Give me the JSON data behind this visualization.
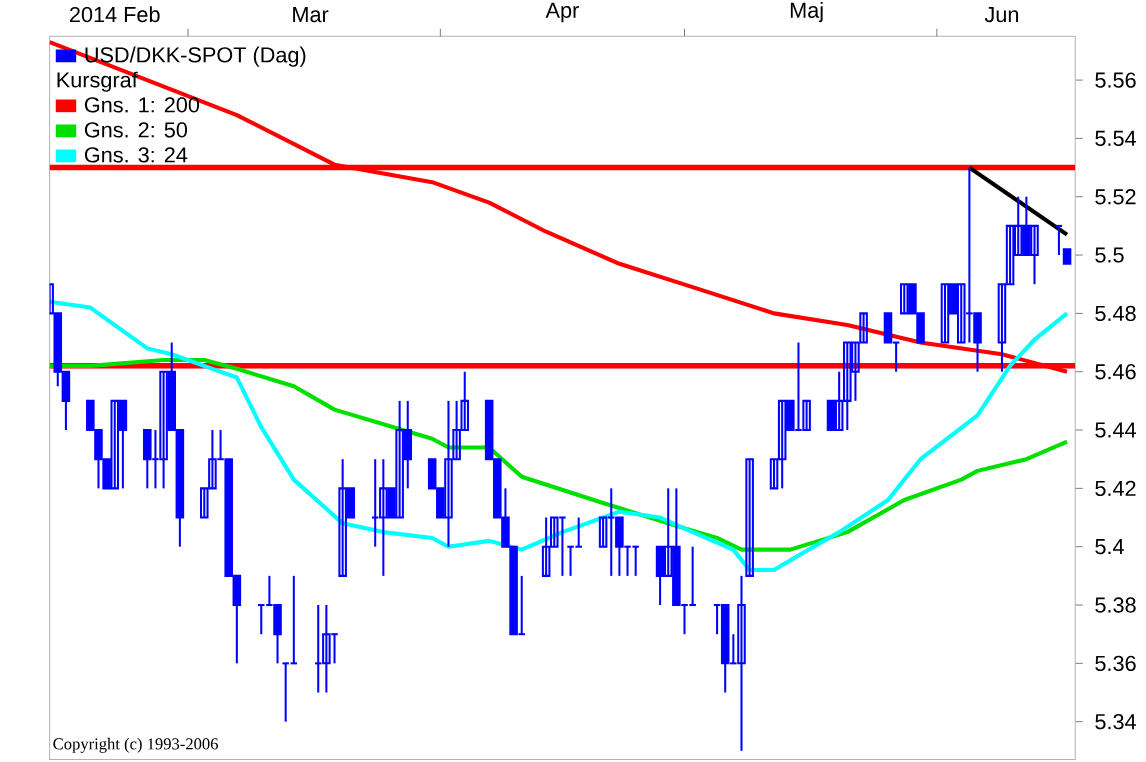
{
  "chart_data": {
    "type": "candlestick",
    "legend": "top left",
    "legend_title": "Kursgraf",
    "xlim": [
      "2014-02-12",
      "2014-06-18"
    ],
    "ylim": [
      5.327,
      5.575
    ],
    "xticks": [
      {
        "value": "2014-02-20",
        "label": "2014 Feb"
      },
      {
        "value": "2014-03-01",
        "label": null
      },
      {
        "value": "2014-03-16",
        "label": "Mar"
      },
      {
        "value": "2014-04-01",
        "label": null
      },
      {
        "value": "2014-04-16",
        "label": "Apr"
      },
      {
        "value": "2014-05-01",
        "label": null
      },
      {
        "value": "2014-05-16",
        "label": "Maj"
      },
      {
        "value": "2014-06-01",
        "label": null
      },
      {
        "value": "2014-06-09",
        "label": "Jun"
      }
    ],
    "yticks": [
      5.34,
      5.36,
      5.38,
      5.4,
      5.42,
      5.44,
      5.46,
      5.48,
      5.5,
      5.52,
      5.54,
      5.56
    ],
    "ref_lines": [
      {
        "axis": "y",
        "value": 5.53,
        "color": "#ff0000"
      },
      {
        "axis": "y",
        "value": 5.462,
        "color": "#ff0000"
      }
    ],
    "annotations": [
      "Copyright (c) 1993-2006"
    ],
    "series": [
      {
        "name": "USD/DKK-SPOT (Dag)",
        "color": "#0000ff",
        "x": [
          "2014-02-12",
          "2014-02-13",
          "2014-02-14",
          "2014-02-17",
          "2014-02-18",
          "2014-02-19",
          "2014-02-20",
          "2014-02-21",
          "2014-02-24",
          "2014-02-25",
          "2014-02-26",
          "2014-02-27",
          "2014-02-28",
          "2014-03-03",
          "2014-03-04",
          "2014-03-05",
          "2014-03-06",
          "2014-03-07",
          "2014-03-10",
          "2014-03-11",
          "2014-03-12",
          "2014-03-13",
          "2014-03-14",
          "2014-03-17",
          "2014-03-18",
          "2014-03-19",
          "2014-03-20",
          "2014-03-21",
          "2014-03-24",
          "2014-03-25",
          "2014-03-26",
          "2014-03-27",
          "2014-03-28",
          "2014-03-31",
          "2014-04-01",
          "2014-04-02",
          "2014-04-03",
          "2014-04-04",
          "2014-04-07",
          "2014-04-08",
          "2014-04-09",
          "2014-04-10",
          "2014-04-11",
          "2014-04-14",
          "2014-04-15",
          "2014-04-16",
          "2014-04-17",
          "2014-04-18",
          "2014-04-21",
          "2014-04-22",
          "2014-04-23",
          "2014-04-24",
          "2014-04-25",
          "2014-04-28",
          "2014-04-29",
          "2014-04-30",
          "2014-05-01",
          "2014-05-02",
          "2014-05-05",
          "2014-05-06",
          "2014-05-07",
          "2014-05-08",
          "2014-05-09",
          "2014-05-12",
          "2014-05-13",
          "2014-05-14",
          "2014-05-15",
          "2014-05-16",
          "2014-05-19",
          "2014-05-20",
          "2014-05-21",
          "2014-05-22",
          "2014-05-23",
          "2014-05-26",
          "2014-05-27",
          "2014-05-28",
          "2014-05-29",
          "2014-05-30",
          "2014-06-02",
          "2014-06-03",
          "2014-06-04",
          "2014-06-05",
          "2014-06-06",
          "2014-06-09",
          "2014-06-10",
          "2014-06-11",
          "2014-06-12",
          "2014-06-13",
          "2014-06-16",
          "2014-06-17"
        ],
        "ohlc": [
          [
            5.48,
            5.49,
            5.48,
            5.49
          ],
          [
            5.48,
            5.48,
            5.455,
            5.46
          ],
          [
            5.46,
            5.46,
            5.44,
            5.45
          ],
          [
            5.45,
            5.45,
            5.44,
            5.44
          ],
          [
            5.44,
            5.44,
            5.42,
            5.43
          ],
          [
            5.43,
            5.43,
            5.42,
            5.42
          ],
          [
            5.42,
            5.45,
            5.42,
            5.45
          ],
          [
            5.45,
            5.45,
            5.42,
            5.44
          ],
          [
            5.44,
            5.44,
            5.42,
            5.43
          ],
          [
            5.43,
            5.44,
            5.42,
            5.43
          ],
          [
            5.43,
            5.46,
            5.42,
            5.46
          ],
          [
            5.46,
            5.47,
            5.44,
            5.44
          ],
          [
            5.44,
            5.44,
            5.4,
            5.41
          ],
          [
            5.41,
            5.42,
            5.41,
            5.42
          ],
          [
            5.42,
            5.44,
            5.42,
            5.43
          ],
          [
            5.43,
            5.44,
            5.43,
            5.43
          ],
          [
            5.43,
            5.43,
            5.39,
            5.39
          ],
          [
            5.39,
            5.39,
            5.36,
            5.38
          ],
          [
            5.38,
            5.38,
            5.37,
            5.38
          ],
          [
            5.38,
            5.39,
            5.38,
            5.38
          ],
          [
            5.38,
            5.38,
            5.36,
            5.37
          ],
          [
            5.36,
            5.36,
            5.34,
            5.36
          ],
          [
            5.36,
            5.39,
            5.36,
            5.36
          ],
          [
            5.36,
            5.38,
            5.35,
            5.36
          ],
          [
            5.36,
            5.38,
            5.35,
            5.37
          ],
          [
            5.37,
            5.37,
            5.36,
            5.37
          ],
          [
            5.39,
            5.43,
            5.39,
            5.42
          ],
          [
            5.42,
            5.42,
            5.41,
            5.41
          ],
          [
            5.41,
            5.43,
            5.4,
            5.41
          ],
          [
            5.41,
            5.43,
            5.39,
            5.42
          ],
          [
            5.42,
            5.42,
            5.41,
            5.41
          ],
          [
            5.41,
            5.45,
            5.41,
            5.44
          ],
          [
            5.44,
            5.45,
            5.42,
            5.43
          ],
          [
            5.43,
            5.43,
            5.42,
            5.42
          ],
          [
            5.42,
            5.42,
            5.41,
            5.41
          ],
          [
            5.41,
            5.45,
            5.4,
            5.43
          ],
          [
            5.43,
            5.45,
            5.43,
            5.44
          ],
          [
            5.44,
            5.46,
            5.44,
            5.45
          ],
          [
            5.45,
            5.45,
            5.43,
            5.43
          ],
          [
            5.43,
            5.43,
            5.41,
            5.41
          ],
          [
            5.41,
            5.42,
            5.4,
            5.4
          ],
          [
            5.4,
            5.4,
            5.37,
            5.37
          ],
          [
            5.37,
            5.39,
            5.37,
            5.37
          ],
          [
            5.39,
            5.41,
            5.39,
            5.4
          ],
          [
            5.4,
            5.41,
            5.4,
            5.41
          ],
          [
            5.41,
            5.41,
            5.39,
            5.41
          ],
          [
            5.4,
            5.4,
            5.39,
            5.4
          ],
          [
            5.4,
            5.41,
            5.4,
            5.4
          ],
          [
            5.4,
            5.41,
            5.4,
            5.41
          ],
          [
            5.41,
            5.42,
            5.39,
            5.41
          ],
          [
            5.41,
            5.41,
            5.39,
            5.4
          ],
          [
            5.4,
            5.4,
            5.39,
            5.4
          ],
          [
            5.4,
            5.4,
            5.39,
            5.4
          ],
          [
            5.4,
            5.4,
            5.38,
            5.39
          ],
          [
            5.39,
            5.42,
            5.39,
            5.4
          ],
          [
            5.4,
            5.42,
            5.38,
            5.38
          ],
          [
            5.38,
            5.38,
            5.37,
            5.38
          ],
          [
            5.38,
            5.4,
            5.38,
            5.38
          ],
          [
            5.38,
            5.38,
            5.37,
            5.38
          ],
          [
            5.38,
            5.38,
            5.35,
            5.36
          ],
          [
            5.36,
            5.37,
            5.36,
            5.36
          ],
          [
            5.36,
            5.39,
            5.33,
            5.38
          ],
          [
            5.39,
            5.43,
            5.39,
            5.43
          ],
          [
            5.42,
            5.43,
            5.42,
            5.43
          ],
          [
            5.43,
            5.45,
            5.42,
            5.45
          ],
          [
            5.45,
            5.45,
            5.44,
            5.44
          ],
          [
            5.44,
            5.47,
            5.44,
            5.44
          ],
          [
            5.44,
            5.45,
            5.44,
            5.45
          ],
          [
            5.45,
            5.45,
            5.44,
            5.44
          ],
          [
            5.44,
            5.46,
            5.44,
            5.45
          ],
          [
            5.45,
            5.47,
            5.44,
            5.47
          ],
          [
            5.46,
            5.47,
            5.45,
            5.47
          ],
          [
            5.47,
            5.48,
            5.47,
            5.48
          ],
          [
            5.48,
            5.48,
            5.47,
            5.47
          ],
          [
            5.47,
            5.47,
            5.46,
            5.47
          ],
          [
            5.48,
            5.49,
            5.48,
            5.49
          ],
          [
            5.49,
            5.49,
            5.48,
            5.48
          ],
          [
            5.48,
            5.48,
            5.47,
            5.47
          ],
          [
            5.47,
            5.49,
            5.47,
            5.49
          ],
          [
            5.49,
            5.49,
            5.48,
            5.48
          ],
          [
            5.47,
            5.49,
            5.47,
            5.49
          ],
          [
            5.48,
            5.53,
            5.47,
            5.48
          ],
          [
            5.48,
            5.48,
            5.46,
            5.47
          ],
          [
            5.47,
            5.49,
            5.46,
            5.49
          ],
          [
            5.49,
            5.51,
            5.49,
            5.51
          ],
          [
            5.5,
            5.52,
            5.5,
            5.51
          ],
          [
            5.51,
            5.52,
            5.5,
            5.5
          ],
          [
            5.5,
            5.51,
            5.49,
            5.51
          ],
          [
            5.51,
            5.51,
            5.5,
            5.51
          ],
          [
            5.502,
            5.502,
            5.497,
            5.497
          ]
        ]
      },
      {
        "name": "Gns. 1: 200",
        "type": "line",
        "color": "#ff0000",
        "x": [
          "2014-02-12",
          "2014-03-07",
          "2014-03-19",
          "2014-03-31",
          "2014-04-07",
          "2014-04-14",
          "2014-04-23",
          "2014-05-02",
          "2014-05-12",
          "2014-05-21",
          "2014-05-30",
          "2014-06-09",
          "2014-06-17"
        ],
        "values": [
          5.573,
          5.548,
          5.531,
          5.525,
          5.518,
          5.508,
          5.497,
          5.489,
          5.48,
          5.476,
          5.47,
          5.466,
          5.46
        ]
      },
      {
        "name": "Gns. 2: 50",
        "type": "line",
        "color": "#00e000",
        "x": [
          "2014-02-12",
          "2014-02-17",
          "2014-02-26",
          "2014-03-03",
          "2014-03-07",
          "2014-03-14",
          "2014-03-19",
          "2014-03-31",
          "2014-04-02",
          "2014-04-07",
          "2014-04-11",
          "2014-04-21",
          "2014-04-29",
          "2014-05-05",
          "2014-05-08",
          "2014-05-12",
          "2014-05-14",
          "2014-05-21",
          "2014-05-28",
          "2014-06-04",
          "2014-06-06",
          "2014-06-12",
          "2014-06-17"
        ],
        "values": [
          5.462,
          5.462,
          5.464,
          5.464,
          5.461,
          5.455,
          5.447,
          5.437,
          5.434,
          5.434,
          5.424,
          5.415,
          5.408,
          5.403,
          5.399,
          5.399,
          5.399,
          5.405,
          5.416,
          5.423,
          5.426,
          5.43,
          5.436
        ]
      },
      {
        "name": "Gns. 3: 24",
        "type": "line",
        "color": "#00ffff",
        "x": [
          "2014-02-12",
          "2014-02-17",
          "2014-02-20",
          "2014-02-24",
          "2014-02-27",
          "2014-03-04",
          "2014-03-07",
          "2014-03-10",
          "2014-03-14",
          "2014-03-20",
          "2014-03-25",
          "2014-03-31",
          "2014-04-02",
          "2014-04-07",
          "2014-04-11",
          "2014-04-16",
          "2014-04-23",
          "2014-04-28",
          "2014-05-02",
          "2014-05-07",
          "2014-05-09",
          "2014-05-12",
          "2014-05-15",
          "2014-05-20",
          "2014-05-26",
          "2014-05-30",
          "2014-06-06",
          "2014-06-10",
          "2014-06-13",
          "2014-06-17"
        ],
        "values": [
          5.484,
          5.482,
          5.476,
          5.468,
          5.466,
          5.461,
          5.458,
          5.441,
          5.423,
          5.408,
          5.405,
          5.403,
          5.4,
          5.402,
          5.399,
          5.405,
          5.412,
          5.41,
          5.405,
          5.399,
          5.392,
          5.392,
          5.397,
          5.405,
          5.416,
          5.43,
          5.445,
          5.462,
          5.471,
          5.48
        ]
      },
      {
        "type": "line",
        "color": "#000000",
        "x": [
          "2014-06-05",
          "2014-06-17"
        ],
        "values": [
          5.53,
          5.507
        ]
      }
    ]
  }
}
